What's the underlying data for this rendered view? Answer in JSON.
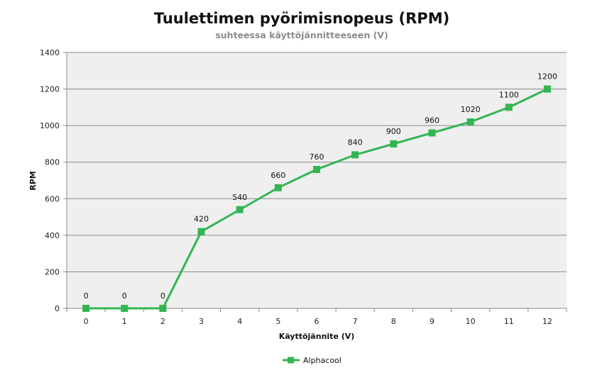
{
  "chart_data": {
    "type": "line",
    "title": "Tuulettimen pyörimisnopeus (RPM)",
    "subtitle": "suhteessa käyttöjännitteeseen (V)",
    "xlabel": "Käyttöjännite  (V)",
    "ylabel": "RPM",
    "categories": [
      "0",
      "1",
      "2",
      "3",
      "4",
      "5",
      "6",
      "7",
      "8",
      "9",
      "10",
      "11",
      "12"
    ],
    "ylim": [
      0,
      1400
    ],
    "yticks": [
      "0",
      "200",
      "400",
      "600",
      "800",
      "1000",
      "1200",
      "1400"
    ],
    "grid": true,
    "legend_position": "bottom",
    "series": [
      {
        "name": "Alphacool",
        "color": "#33b552",
        "values": [
          0,
          0,
          0,
          420,
          540,
          660,
          760,
          840,
          900,
          960,
          1020,
          1100,
          1200
        ]
      }
    ]
  }
}
